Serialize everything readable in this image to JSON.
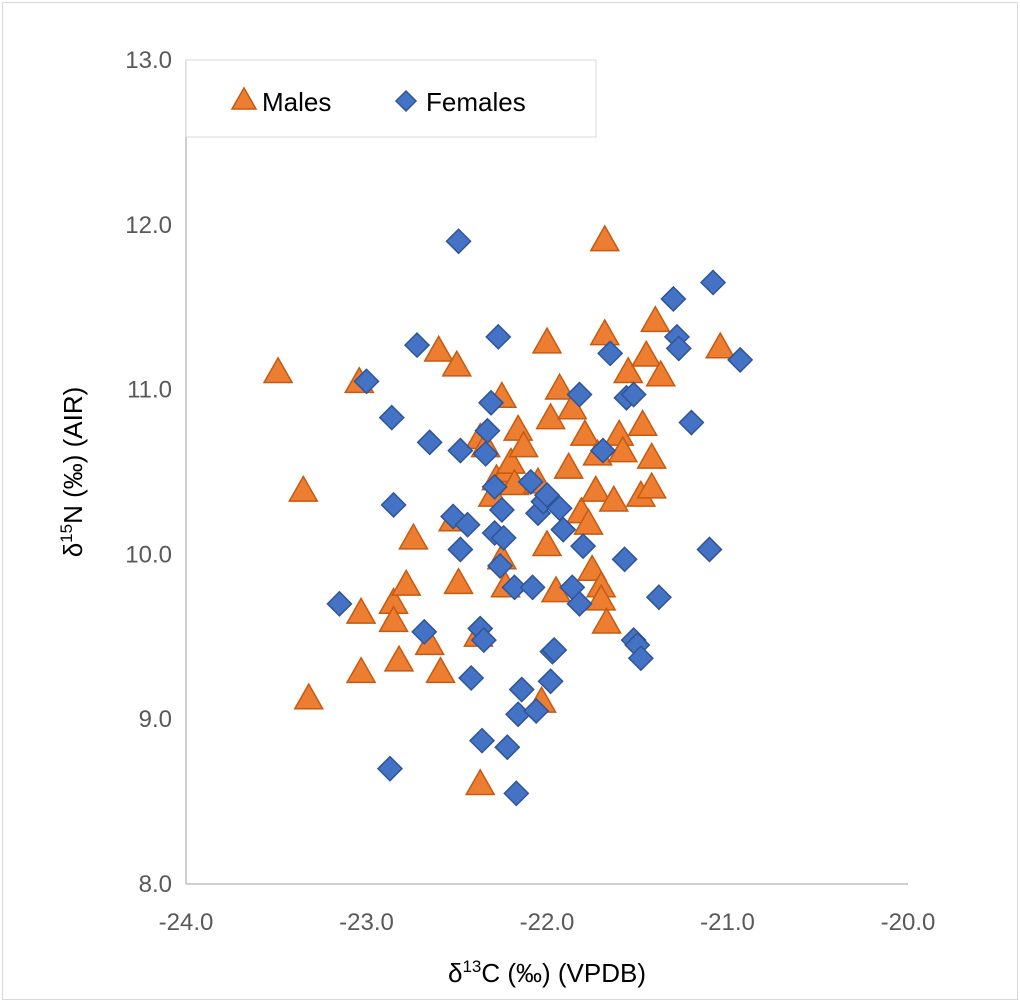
{
  "chart_data": {
    "type": "scatter",
    "xlabel_prefix": "δ",
    "xlabel_sup": "13",
    "xlabel_rest": "C (‰) (VPDB)",
    "ylabel_prefix": "δ",
    "ylabel_sup": "15",
    "ylabel_rest": "N (‰) (AIR)",
    "xlim": [
      -24.0,
      -20.0
    ],
    "ylim": [
      8.0,
      13.0
    ],
    "xticks": [
      "-24.0",
      "-23.0",
      "-22.0",
      "-21.0",
      "-20.0"
    ],
    "yticks": [
      "8.0",
      "9.0",
      "10.0",
      "11.0",
      "12.0",
      "13.0"
    ],
    "grid": false,
    "legend_position": "top-left",
    "series": [
      {
        "name": "Males",
        "marker": "triangle",
        "color": "#ED7D31",
        "edge": "#C55A11",
        "points": [
          [
            -23.49,
            11.1
          ],
          [
            -23.35,
            10.38
          ],
          [
            -23.32,
            9.12
          ],
          [
            -23.04,
            11.04
          ],
          [
            -23.03,
            9.64
          ],
          [
            -23.03,
            9.28
          ],
          [
            -22.85,
            9.7
          ],
          [
            -22.85,
            9.59
          ],
          [
            -22.82,
            9.35
          ],
          [
            -22.78,
            9.81
          ],
          [
            -22.74,
            10.09
          ],
          [
            -22.65,
            9.45
          ],
          [
            -22.6,
            11.23
          ],
          [
            -22.59,
            9.28
          ],
          [
            -22.52,
            10.2
          ],
          [
            -22.5,
            11.14
          ],
          [
            -22.49,
            9.82
          ],
          [
            -22.38,
            9.5
          ],
          [
            -22.37,
            10.7
          ],
          [
            -22.37,
            8.6
          ],
          [
            -22.34,
            10.65
          ],
          [
            -22.3,
            10.35
          ],
          [
            -22.28,
            10.45
          ],
          [
            -22.25,
            9.97
          ],
          [
            -22.25,
            10.95
          ],
          [
            -22.23,
            9.8
          ],
          [
            -22.22,
            10.5
          ],
          [
            -22.2,
            10.55
          ],
          [
            -22.18,
            10.42
          ],
          [
            -22.16,
            10.75
          ],
          [
            -22.13,
            10.65
          ],
          [
            -22.05,
            10.43
          ],
          [
            -22.03,
            9.1
          ],
          [
            -22.0,
            10.05
          ],
          [
            -22.0,
            11.28
          ],
          [
            -21.98,
            10.82
          ],
          [
            -21.95,
            9.77
          ],
          [
            -21.93,
            11.0
          ],
          [
            -21.88,
            10.52
          ],
          [
            -21.86,
            10.88
          ],
          [
            -21.81,
            10.25
          ],
          [
            -21.79,
            10.72
          ],
          [
            -21.77,
            10.18
          ],
          [
            -21.75,
            9.9
          ],
          [
            -21.73,
            10.38
          ],
          [
            -21.72,
            10.6
          ],
          [
            -21.7,
            9.8
          ],
          [
            -21.7,
            9.72
          ],
          [
            -21.68,
            11.33
          ],
          [
            -21.68,
            11.9
          ],
          [
            -21.67,
            9.58
          ],
          [
            -21.63,
            10.32
          ],
          [
            -21.6,
            10.72
          ],
          [
            -21.58,
            10.62
          ],
          [
            -21.55,
            11.1
          ],
          [
            -21.48,
            10.35
          ],
          [
            -21.47,
            10.78
          ],
          [
            -21.45,
            11.2
          ],
          [
            -21.42,
            10.58
          ],
          [
            -21.42,
            10.4
          ],
          [
            -21.4,
            11.41
          ],
          [
            -21.37,
            11.08
          ],
          [
            -21.04,
            11.25
          ]
        ]
      },
      {
        "name": "Females",
        "marker": "diamond",
        "color": "#4472C4",
        "edge": "#2F5597",
        "points": [
          [
            -23.15,
            9.7
          ],
          [
            -23.0,
            11.05
          ],
          [
            -22.87,
            8.7
          ],
          [
            -22.86,
            10.83
          ],
          [
            -22.85,
            10.3
          ],
          [
            -22.72,
            11.27
          ],
          [
            -22.68,
            9.53
          ],
          [
            -22.65,
            10.68
          ],
          [
            -22.52,
            10.23
          ],
          [
            -22.49,
            11.9
          ],
          [
            -22.48,
            10.03
          ],
          [
            -22.48,
            10.63
          ],
          [
            -22.44,
            10.18
          ],
          [
            -22.42,
            9.25
          ],
          [
            -22.37,
            9.55
          ],
          [
            -22.36,
            8.87
          ],
          [
            -22.35,
            9.48
          ],
          [
            -22.34,
            10.61
          ],
          [
            -22.33,
            10.75
          ],
          [
            -22.31,
            10.92
          ],
          [
            -22.29,
            10.13
          ],
          [
            -22.29,
            10.41
          ],
          [
            -22.27,
            11.32
          ],
          [
            -22.26,
            9.93
          ],
          [
            -22.25,
            10.27
          ],
          [
            -22.24,
            10.1
          ],
          [
            -22.22,
            8.83
          ],
          [
            -22.18,
            9.8
          ],
          [
            -22.17,
            8.55
          ],
          [
            -22.16,
            9.03
          ],
          [
            -22.14,
            9.18
          ],
          [
            -22.09,
            10.44
          ],
          [
            -22.08,
            9.8
          ],
          [
            -22.06,
            9.05
          ],
          [
            -22.05,
            10.25
          ],
          [
            -22.02,
            10.32
          ],
          [
            -22.0,
            10.36
          ],
          [
            -21.98,
            9.23
          ],
          [
            -21.97,
            9.41
          ],
          [
            -21.96,
            9.42
          ],
          [
            -21.93,
            10.28
          ],
          [
            -21.91,
            10.15
          ],
          [
            -21.86,
            9.8
          ],
          [
            -21.82,
            9.7
          ],
          [
            -21.82,
            10.97
          ],
          [
            -21.8,
            10.05
          ],
          [
            -21.69,
            10.63
          ],
          [
            -21.65,
            11.22
          ],
          [
            -21.57,
            9.97
          ],
          [
            -21.56,
            10.95
          ],
          [
            -21.52,
            10.97
          ],
          [
            -21.52,
            9.48
          ],
          [
            -21.5,
            9.45
          ],
          [
            -21.48,
            9.37
          ],
          [
            -21.38,
            9.74
          ],
          [
            -21.3,
            11.55
          ],
          [
            -21.28,
            11.32
          ],
          [
            -21.27,
            11.25
          ],
          [
            -21.2,
            10.8
          ],
          [
            -21.1,
            10.03
          ],
          [
            -21.08,
            11.65
          ],
          [
            -20.93,
            11.18
          ]
        ]
      }
    ]
  }
}
